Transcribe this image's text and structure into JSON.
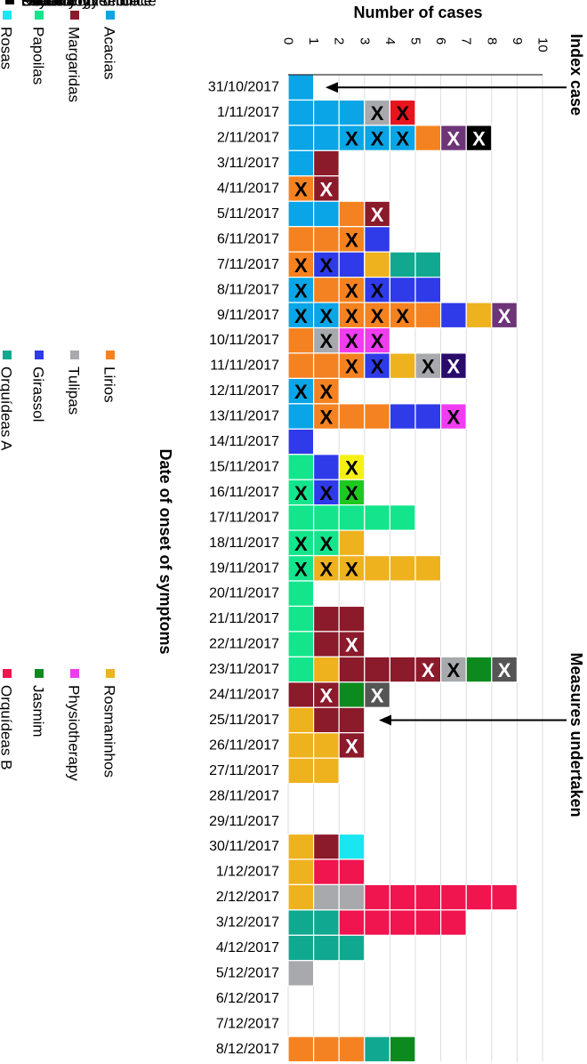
{
  "chart_data": {
    "type": "bar",
    "title": "",
    "xlabel": "Date of onset of symptoms",
    "ylabel": "Number of cases",
    "ylim": [
      0,
      10
    ],
    "y_ticks": [
      "0",
      "1",
      "2",
      "3",
      "4",
      "5",
      "6",
      "7",
      "8",
      "9",
      "10"
    ],
    "legend_title": "",
    "categories": [
      "31/10/2017",
      "1/11/2017",
      "2/11/2017",
      "3/11/2017",
      "4/11/2017",
      "5/11/2017",
      "6/11/2017",
      "7/11/2017",
      "8/11/2017",
      "9/11/2017",
      "10/11/2017",
      "11/11/2017",
      "12/11/2017",
      "13/11/2017",
      "14/11/2017",
      "15/11/2017",
      "16/11/2017",
      "17/11/2017",
      "18/11/2017",
      "19/11/2017",
      "20/11/2017",
      "21/11/2017",
      "22/11/2017",
      "23/11/2017",
      "24/11/2017",
      "25/11/2017",
      "26/11/2017",
      "27/11/2017",
      "28/11/2017",
      "29/11/2017",
      "30/11/2017",
      "1/12/2017",
      "2/12/2017",
      "3/12/2017",
      "4/12/2017",
      "5/12/2017",
      "6/12/2017",
      "7/12/2017",
      "8/12/2017"
    ],
    "units": [
      {
        "id": "acacias",
        "name": "Acacias",
        "color": "#0aa5e6"
      },
      {
        "id": "lirios",
        "name": "Lirios",
        "color": "#f58220"
      },
      {
        "id": "papoilas",
        "name": "Papoilas",
        "color": "#14e58c"
      },
      {
        "id": "girassol",
        "name": "Girassol",
        "color": "#2f3be8"
      },
      {
        "id": "rosmaninhos",
        "name": "Rosmaninhos",
        "color": "#eeb21f"
      },
      {
        "id": "margaridas",
        "name": "Margaridas",
        "color": "#8b1a2b"
      },
      {
        "id": "tulipas",
        "name": "Tulipas",
        "color": "#a7a9ac"
      },
      {
        "id": "orquideas_a",
        "name": "Orquídeas A",
        "color": "#10a98f"
      },
      {
        "id": "orquideas_b",
        "name": "Orquídeas B",
        "color": "#f0144f"
      },
      {
        "id": "jasmim",
        "name": "Jasmim",
        "color": "#0c8a1e"
      },
      {
        "id": "rosas",
        "name": "Rosas",
        "color": "#19e6f0"
      },
      {
        "id": "physiotherapy",
        "name": "Physiotherapy",
        "color": "#f03cf0"
      },
      {
        "id": "pharmacy",
        "name": "Pharmacy",
        "color": "#e8141e"
      },
      {
        "id": "laundry",
        "name": "Laundry",
        "color": "#6e3478"
      },
      {
        "id": "social_worker_office",
        "name": "Social worker office",
        "color": "#2a0a6b"
      },
      {
        "id": "director_nurse_office",
        "name": "Director nurse office",
        "color": "#f5f014"
      },
      {
        "id": "other",
        "name": "Other",
        "color": "#1fc81f"
      },
      {
        "id": "psychology_office",
        "name": "Psychology office",
        "color": "#555555"
      },
      {
        "id": "kitchen",
        "name": "Kitchen",
        "color": "#000000"
      }
    ],
    "legend_order": [
      "acacias",
      "lirios",
      "rosmaninhos",
      "margaridas",
      "tulipas",
      "physiotherapy",
      "papoilas",
      "girassol",
      "jasmim",
      "rosas",
      "orquideas_a",
      "orquideas_b",
      "other",
      "pharmacy",
      "laundry",
      "social_worker_office",
      "director_nurse_office",
      "psychology_office",
      "kitchen"
    ],
    "stacks": [
      [
        {
          "u": "acacias"
        }
      ],
      [
        {
          "u": "acacias"
        },
        {
          "u": "acacias"
        },
        {
          "u": "acacias"
        },
        {
          "u": "tulipas",
          "x": "k"
        },
        {
          "u": "pharmacy",
          "x": "k"
        }
      ],
      [
        {
          "u": "acacias"
        },
        {
          "u": "acacias"
        },
        {
          "u": "acacias",
          "x": "k"
        },
        {
          "u": "acacias",
          "x": "k"
        },
        {
          "u": "acacias",
          "x": "k"
        },
        {
          "u": "lirios"
        },
        {
          "u": "laundry",
          "x": "w"
        },
        {
          "u": "kitchen",
          "x": "w"
        }
      ],
      [
        {
          "u": "acacias"
        },
        {
          "u": "margaridas"
        }
      ],
      [
        {
          "u": "lirios",
          "x": "k"
        },
        {
          "u": "margaridas",
          "x": "w"
        }
      ],
      [
        {
          "u": "acacias"
        },
        {
          "u": "acacias"
        },
        {
          "u": "lirios"
        },
        {
          "u": "margaridas",
          "x": "w"
        }
      ],
      [
        {
          "u": "lirios"
        },
        {
          "u": "lirios"
        },
        {
          "u": "lirios",
          "x": "k"
        },
        {
          "u": "girassol"
        }
      ],
      [
        {
          "u": "lirios",
          "x": "k"
        },
        {
          "u": "girassol",
          "x": "k"
        },
        {
          "u": "girassol"
        },
        {
          "u": "rosmaninhos"
        },
        {
          "u": "orquideas_a"
        },
        {
          "u": "orquideas_a"
        }
      ],
      [
        {
          "u": "acacias",
          "x": "k"
        },
        {
          "u": "lirios"
        },
        {
          "u": "lirios",
          "x": "k"
        },
        {
          "u": "girassol",
          "x": "k"
        },
        {
          "u": "girassol"
        },
        {
          "u": "girassol"
        }
      ],
      [
        {
          "u": "acacias",
          "x": "k"
        },
        {
          "u": "acacias",
          "x": "k"
        },
        {
          "u": "lirios",
          "x": "k"
        },
        {
          "u": "lirios",
          "x": "k"
        },
        {
          "u": "lirios",
          "x": "k"
        },
        {
          "u": "lirios"
        },
        {
          "u": "girassol"
        },
        {
          "u": "rosmaninhos"
        },
        {
          "u": "laundry",
          "x": "w"
        }
      ],
      [
        {
          "u": "lirios"
        },
        {
          "u": "tulipas",
          "x": "k"
        },
        {
          "u": "physiotherapy",
          "x": "k"
        },
        {
          "u": "physiotherapy",
          "x": "k"
        }
      ],
      [
        {
          "u": "lirios"
        },
        {
          "u": "lirios"
        },
        {
          "u": "lirios",
          "x": "k"
        },
        {
          "u": "girassol",
          "x": "k"
        },
        {
          "u": "rosmaninhos"
        },
        {
          "u": "tulipas",
          "x": "k"
        },
        {
          "u": "social_worker_office",
          "x": "w"
        }
      ],
      [
        {
          "u": "acacias",
          "x": "k"
        },
        {
          "u": "lirios",
          "x": "k"
        }
      ],
      [
        {
          "u": "acacias"
        },
        {
          "u": "lirios",
          "x": "k"
        },
        {
          "u": "lirios"
        },
        {
          "u": "lirios"
        },
        {
          "u": "girassol"
        },
        {
          "u": "girassol"
        },
        {
          "u": "physiotherapy",
          "x": "k"
        }
      ],
      [
        {
          "u": "girassol"
        }
      ],
      [
        {
          "u": "papoilas"
        },
        {
          "u": "girassol"
        },
        {
          "u": "director_nurse_office",
          "x": "k"
        }
      ],
      [
        {
          "u": "papoilas",
          "x": "k"
        },
        {
          "u": "girassol",
          "x": "k"
        },
        {
          "u": "other",
          "x": "k"
        }
      ],
      [
        {
          "u": "papoilas"
        },
        {
          "u": "papoilas"
        },
        {
          "u": "papoilas"
        },
        {
          "u": "papoilas"
        },
        {
          "u": "papoilas"
        }
      ],
      [
        {
          "u": "papoilas",
          "x": "k"
        },
        {
          "u": "papoilas",
          "x": "k"
        },
        {
          "u": "rosmaninhos"
        }
      ],
      [
        {
          "u": "papoilas",
          "x": "k"
        },
        {
          "u": "rosmaninhos",
          "x": "k"
        },
        {
          "u": "rosmaninhos",
          "x": "k"
        },
        {
          "u": "rosmaninhos"
        },
        {
          "u": "rosmaninhos"
        },
        {
          "u": "rosmaninhos"
        }
      ],
      [
        {
          "u": "papoilas"
        }
      ],
      [
        {
          "u": "papoilas"
        },
        {
          "u": "margaridas"
        },
        {
          "u": "margaridas"
        }
      ],
      [
        {
          "u": "papoilas"
        },
        {
          "u": "margaridas"
        },
        {
          "u": "margaridas",
          "x": "w"
        }
      ],
      [
        {
          "u": "papoilas"
        },
        {
          "u": "rosmaninhos"
        },
        {
          "u": "margaridas"
        },
        {
          "u": "margaridas"
        },
        {
          "u": "margaridas"
        },
        {
          "u": "margaridas",
          "x": "w"
        },
        {
          "u": "tulipas",
          "x": "k"
        },
        {
          "u": "jasmim"
        },
        {
          "u": "psychology_office",
          "x": "w"
        }
      ],
      [
        {
          "u": "margaridas"
        },
        {
          "u": "margaridas",
          "x": "w"
        },
        {
          "u": "jasmim"
        },
        {
          "u": "psychology_office",
          "x": "w"
        }
      ],
      [
        {
          "u": "rosmaninhos"
        },
        {
          "u": "margaridas"
        },
        {
          "u": "margaridas"
        }
      ],
      [
        {
          "u": "rosmaninhos"
        },
        {
          "u": "rosmaninhos"
        },
        {
          "u": "margaridas",
          "x": "w"
        }
      ],
      [
        {
          "u": "rosmaninhos"
        },
        {
          "u": "rosmaninhos"
        }
      ],
      [],
      [],
      [
        {
          "u": "rosmaninhos"
        },
        {
          "u": "margaridas"
        },
        {
          "u": "rosas"
        }
      ],
      [
        {
          "u": "rosmaninhos"
        },
        {
          "u": "orquideas_b"
        },
        {
          "u": "orquideas_b"
        }
      ],
      [
        {
          "u": "rosmaninhos"
        },
        {
          "u": "tulipas"
        },
        {
          "u": "tulipas"
        },
        {
          "u": "orquideas_b"
        },
        {
          "u": "orquideas_b"
        },
        {
          "u": "orquideas_b"
        },
        {
          "u": "orquideas_b"
        },
        {
          "u": "orquideas_b"
        },
        {
          "u": "orquideas_b"
        }
      ],
      [
        {
          "u": "orquideas_a"
        },
        {
          "u": "orquideas_a"
        },
        {
          "u": "orquideas_b"
        },
        {
          "u": "orquideas_b"
        },
        {
          "u": "orquideas_b"
        },
        {
          "u": "orquideas_b"
        },
        {
          "u": "orquideas_b"
        }
      ],
      [
        {
          "u": "orquideas_a"
        },
        {
          "u": "orquideas_a"
        },
        {
          "u": "orquideas_a"
        }
      ],
      [
        {
          "u": "tulipas"
        }
      ],
      [],
      [],
      [
        {
          "u": "lirios"
        },
        {
          "u": "lirios"
        },
        {
          "u": "lirios"
        },
        {
          "u": "orquideas_a"
        },
        {
          "u": "jasmim"
        }
      ]
    ],
    "annotations": [
      {
        "label": "Index case",
        "date": "31/10/2017"
      },
      {
        "label": "Measures undertaken",
        "date": "25/11/2017"
      }
    ],
    "mark_glyph": "X"
  }
}
